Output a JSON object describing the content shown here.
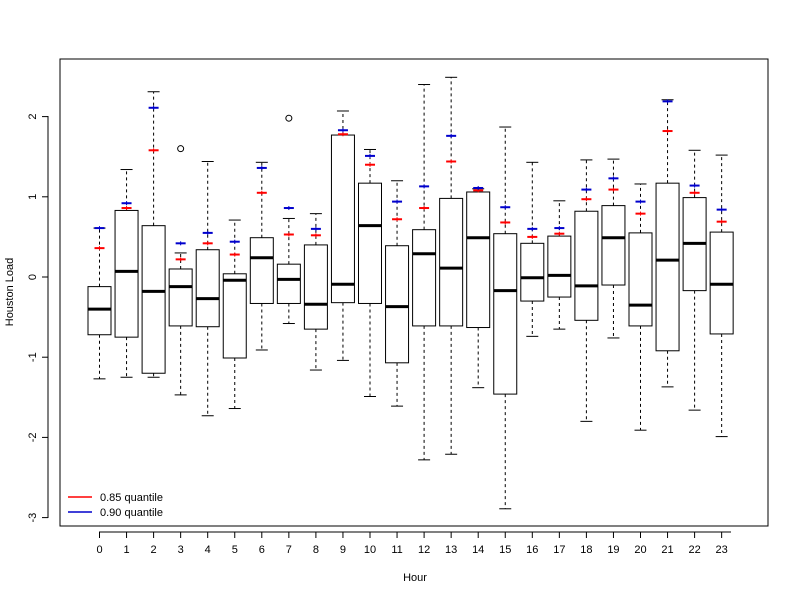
{
  "chart_data": {
    "type": "boxplot",
    "xlabel": "Hour",
    "ylabel": "Houston Load",
    "ylim": [
      -3.1,
      2.7
    ],
    "yticks": [
      -3,
      -2,
      -1,
      0,
      1,
      2
    ],
    "grid": false,
    "legend_position": "bottom-left",
    "categories": [
      "0",
      "1",
      "2",
      "3",
      "4",
      "5",
      "6",
      "7",
      "8",
      "9",
      "10",
      "11",
      "12",
      "13",
      "14",
      "15",
      "16",
      "17",
      "18",
      "19",
      "20",
      "21",
      "22",
      "23"
    ],
    "boxes": [
      {
        "whisker_low": -1.27,
        "q1": -0.72,
        "median": -0.4,
        "q3": -0.12,
        "whisker_high": 0.61,
        "outliers": []
      },
      {
        "whisker_low": -1.25,
        "q1": -0.75,
        "median": 0.07,
        "q3": 0.83,
        "whisker_high": 1.34,
        "outliers": []
      },
      {
        "whisker_low": -1.25,
        "q1": -1.2,
        "median": -0.18,
        "q3": 0.64,
        "whisker_high": 2.31,
        "outliers": []
      },
      {
        "whisker_low": -1.47,
        "q1": -0.61,
        "median": -0.12,
        "q3": 0.1,
        "whisker_high": 0.3,
        "outliers": [
          1.6
        ]
      },
      {
        "whisker_low": -1.73,
        "q1": -0.62,
        "median": -0.27,
        "q3": 0.34,
        "whisker_high": 1.44,
        "outliers": []
      },
      {
        "whisker_low": -1.64,
        "q1": -1.01,
        "median": -0.04,
        "q3": 0.04,
        "whisker_high": 0.71,
        "outliers": []
      },
      {
        "whisker_low": -0.91,
        "q1": -0.33,
        "median": 0.24,
        "q3": 0.49,
        "whisker_high": 1.43,
        "outliers": []
      },
      {
        "whisker_low": -0.58,
        "q1": -0.33,
        "median": -0.03,
        "q3": 0.16,
        "whisker_high": 0.73,
        "outliers": [
          1.98
        ]
      },
      {
        "whisker_low": -1.16,
        "q1": -0.65,
        "median": -0.34,
        "q3": 0.4,
        "whisker_high": 0.79,
        "outliers": []
      },
      {
        "whisker_low": -1.04,
        "q1": -0.32,
        "median": -0.09,
        "q3": 1.77,
        "whisker_high": 2.07,
        "outliers": []
      },
      {
        "whisker_low": -1.49,
        "q1": -0.33,
        "median": 0.64,
        "q3": 1.17,
        "whisker_high": 1.59,
        "outliers": []
      },
      {
        "whisker_low": -1.61,
        "q1": -1.07,
        "median": -0.37,
        "q3": 0.39,
        "whisker_high": 1.2,
        "outliers": []
      },
      {
        "whisker_low": -2.28,
        "q1": -0.61,
        "median": 0.29,
        "q3": 0.59,
        "whisker_high": 2.4,
        "outliers": []
      },
      {
        "whisker_low": -2.21,
        "q1": -0.61,
        "median": 0.11,
        "q3": 0.98,
        "whisker_high": 2.49,
        "outliers": []
      },
      {
        "whisker_low": -1.38,
        "q1": -0.63,
        "median": 0.49,
        "q3": 1.06,
        "whisker_high": 1.1,
        "outliers": []
      },
      {
        "whisker_low": -2.89,
        "q1": -1.46,
        "median": -0.17,
        "q3": 0.54,
        "whisker_high": 1.87,
        "outliers": []
      },
      {
        "whisker_low": -0.74,
        "q1": -0.3,
        "median": -0.01,
        "q3": 0.42,
        "whisker_high": 1.43,
        "outliers": []
      },
      {
        "whisker_low": -0.65,
        "q1": -0.25,
        "median": 0.02,
        "q3": 0.51,
        "whisker_high": 0.95,
        "outliers": []
      },
      {
        "whisker_low": -1.8,
        "q1": -0.54,
        "median": -0.11,
        "q3": 0.82,
        "whisker_high": 1.46,
        "outliers": []
      },
      {
        "whisker_low": -0.76,
        "q1": -0.1,
        "median": 0.49,
        "q3": 0.89,
        "whisker_high": 1.47,
        "outliers": []
      },
      {
        "whisker_low": -1.91,
        "q1": -0.61,
        "median": -0.35,
        "q3": 0.55,
        "whisker_high": 1.16,
        "outliers": []
      },
      {
        "whisker_low": -1.37,
        "q1": -0.92,
        "median": 0.21,
        "q3": 1.17,
        "whisker_high": 2.21,
        "outliers": []
      },
      {
        "whisker_low": -1.66,
        "q1": -0.17,
        "median": 0.42,
        "q3": 0.99,
        "whisker_high": 1.58,
        "outliers": []
      },
      {
        "whisker_low": -1.99,
        "q1": -0.71,
        "median": -0.09,
        "q3": 0.56,
        "whisker_high": 1.52,
        "outliers": []
      }
    ],
    "series": [
      {
        "name": "0.85 quantile",
        "color": "#ff0000",
        "values": [
          0.36,
          0.86,
          1.58,
          0.22,
          0.42,
          0.28,
          1.05,
          0.53,
          0.52,
          1.78,
          1.4,
          0.72,
          0.86,
          1.44,
          1.08,
          0.68,
          0.5,
          0.54,
          0.97,
          1.09,
          0.79,
          1.82,
          1.05,
          0.69
        ]
      },
      {
        "name": "0.90 quantile",
        "color": "#0000cc",
        "values": [
          0.61,
          0.92,
          2.11,
          0.42,
          0.55,
          0.44,
          1.36,
          0.86,
          0.6,
          1.83,
          1.51,
          0.94,
          1.13,
          1.76,
          1.11,
          0.87,
          0.6,
          0.61,
          1.09,
          1.23,
          0.94,
          2.19,
          1.14,
          0.84
        ]
      }
    ]
  }
}
